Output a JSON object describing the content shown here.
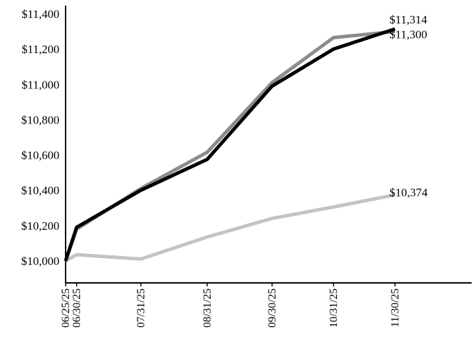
{
  "chart_data": {
    "type": "line",
    "title": "",
    "xlabel": "",
    "ylabel": "",
    "x": [
      "06/25/25",
      "06/30/25",
      "07/31/25",
      "08/31/25",
      "09/30/25",
      "10/31/25",
      "11/30/25"
    ],
    "ylim": [
      9850,
      11420
    ],
    "yticks": [
      10000,
      10200,
      10400,
      10600,
      10800,
      11000,
      11200,
      11400
    ],
    "ytick_labels": [
      "$10,000",
      "$10,200",
      "$10,400",
      "$10,600",
      "$10,800",
      "$11,000",
      "$11,200",
      "$11,400"
    ],
    "grid": false,
    "legend": "none",
    "series": [
      {
        "color": "#000000",
        "values": [
          10000,
          10190,
          10400,
          10575,
          10990,
          11200,
          11314
        ],
        "end_label": "$11,314"
      },
      {
        "color": "#8c8c8c",
        "values": [
          10000,
          10180,
          10410,
          10615,
          11010,
          11265,
          11300
        ],
        "end_label": "$11,300"
      },
      {
        "color": "#c4c4c4",
        "values": [
          10000,
          10035,
          10010,
          10135,
          10240,
          10305,
          10374
        ],
        "end_label": "$10,374"
      }
    ]
  }
}
